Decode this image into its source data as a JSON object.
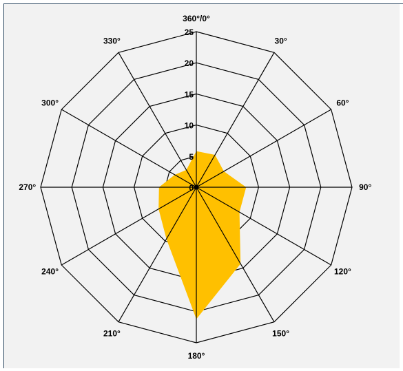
{
  "chart_data": {
    "type": "radar",
    "angle_labels": [
      "360°/0°",
      "30°",
      "60°",
      "90°",
      "120°",
      "150°",
      "180°",
      "210°",
      "240°",
      "270°",
      "300°",
      "330°"
    ],
    "angles_deg": [
      0,
      30,
      60,
      90,
      120,
      150,
      180,
      210,
      240,
      270,
      300,
      330
    ],
    "radial_ticks": [
      0,
      5,
      10,
      15,
      20,
      25
    ],
    "radial_tick_labels": [
      "0",
      "5",
      "10",
      "15",
      "20",
      "25"
    ],
    "rmax": 25,
    "series": [
      {
        "values": [
          5.8,
          6.0,
          5.1,
          8.0,
          8.0,
          14.2,
          21.2,
          9.6,
          7.0,
          6.0,
          4.0,
          3.2
        ],
        "color": "#ffc000"
      }
    ],
    "legend": "none"
  }
}
